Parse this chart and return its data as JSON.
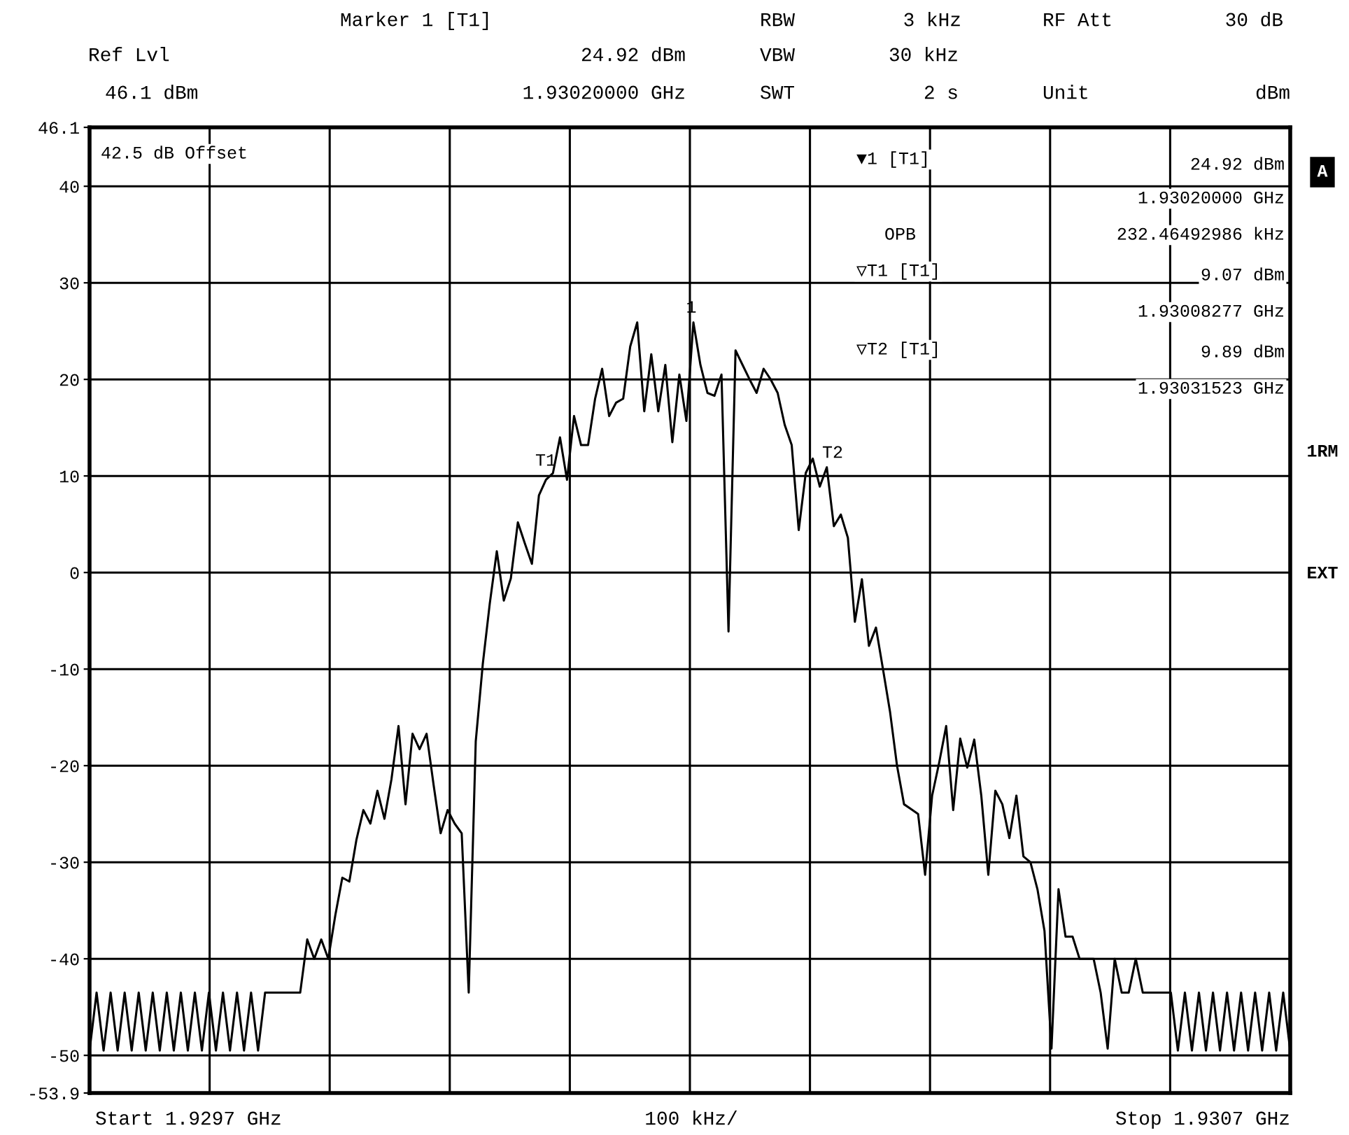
{
  "chart_data": {
    "type": "line",
    "categories": [
      null,
      null,
      null,
      null,
      null,
      null,
      null,
      null,
      null,
      null,
      null,
      null,
      null,
      null,
      null,
      null,
      null,
      null,
      null,
      null,
      null,
      null,
      null,
      null,
      null,
      null,
      null,
      null,
      null,
      null,
      null,
      null,
      null,
      null,
      null,
      null,
      null,
      null,
      null,
      null,
      null,
      null,
      null,
      null,
      null,
      null,
      null,
      null,
      null,
      null,
      null,
      null,
      null,
      null,
      null,
      null,
      null,
      null,
      null,
      null,
      null,
      null,
      null,
      null,
      null,
      null,
      null,
      null,
      null,
      null,
      null,
      null,
      null,
      null,
      null,
      null,
      null,
      null,
      null,
      null,
      null,
      null,
      null,
      null,
      null,
      null,
      null,
      null,
      null,
      null,
      null,
      null,
      null,
      null,
      null,
      null,
      null,
      null,
      null,
      null,
      null,
      null,
      null,
      null,
      null,
      null,
      null,
      null,
      null,
      null,
      null,
      null,
      null,
      null,
      null,
      null,
      null,
      null,
      null,
      null,
      null,
      null,
      null,
      null,
      null,
      null,
      null,
      null,
      null,
      null,
      null,
      null,
      null,
      null,
      null,
      null,
      null,
      null,
      null,
      null,
      null,
      null,
      null,
      null,
      null,
      null,
      null,
      null,
      null,
      null,
      null,
      null,
      null,
      null,
      null,
      null,
      null,
      null,
      null,
      null,
      null,
      null,
      null,
      null,
      null,
      null,
      null,
      null,
      null,
      null,
      null,
      null
    ],
    "ylim": [
      -53.9,
      46.1
    ],
    "yticks": [
      -53.9,
      -50,
      -40,
      -30,
      -20,
      -10,
      0,
      10,
      20,
      30,
      40,
      46.1
    ],
    "grid": true,
    "line_style": "solid",
    "marker": "none",
    "series": [
      {
        "color": "#000000",
        "values": [
          -49.5,
          -43.5,
          -49.5,
          -43.5,
          -49.5,
          -43.5,
          -49.5,
          -43.5,
          -49.5,
          -43.5,
          -49.5,
          -43.5,
          -49.5,
          -43.5,
          -49.5,
          -43.5,
          -49.5,
          -43.5,
          -49.5,
          -43.5,
          -49.5,
          -43.5,
          -49.5,
          -43.5,
          -49.5,
          -43.5,
          -43.5,
          -43.5,
          -43.5,
          -43.5,
          -43.5,
          -38,
          -40,
          -38,
          -40,
          -35.5,
          -31.6,
          -32,
          -27.7,
          -24.6,
          -26,
          -22.6,
          -25.5,
          -21.4,
          -15.9,
          -24,
          -16.7,
          -18.3,
          -16.7,
          -22,
          -27,
          -24.6,
          -26,
          -27,
          -43.5,
          -17.5,
          -9.5,
          -3.2,
          2.2,
          -2.9,
          -0.6,
          5.2,
          3,
          0.9,
          8,
          9.6,
          10.3,
          14,
          9.6,
          16.2,
          13.2,
          13.2,
          18,
          21.1,
          16.2,
          17.6,
          18,
          23.4,
          25.9,
          16.7,
          22.6,
          16.7,
          21.5,
          13.5,
          20.5,
          15.7,
          25.9,
          21.5,
          18.6,
          18.3,
          20.5,
          -6.1,
          23,
          21.5,
          20,
          18.6,
          21.1,
          20,
          18.6,
          15.3,
          13.2,
          4.4,
          10.3,
          11.8,
          8.9,
          10.9,
          4.8,
          6,
          3.6,
          -5.1,
          -0.7,
          -7.6,
          -5.7,
          -10,
          -14.4,
          -20,
          -24,
          -24.5,
          -25,
          -31.3,
          -23.1,
          -19.7,
          -15.9,
          -24.6,
          -17.2,
          -20.2,
          -17.3,
          -23.1,
          -31.3,
          -22.6,
          -24,
          -27.5,
          -23.1,
          -29.4,
          -30,
          -32.8,
          -37.1,
          -49.3,
          -32.8,
          -37.7,
          -37.7,
          -40,
          -40,
          -40,
          -43.5,
          -49.3,
          -40,
          -43.5,
          -43.5,
          -40,
          -43.5,
          -43.5,
          -43.5,
          -43.5,
          -43.5,
          -49.5,
          -43.5,
          -49.5,
          -43.5,
          -49.5,
          -43.5,
          -49.5,
          -43.5,
          -49.5,
          -43.5,
          -49.5,
          -43.5,
          -49.5,
          -43.5,
          -49.5,
          -43.5,
          -49.5
        ]
      }
    ],
    "annotations": [
      "Marker 1 [T1]",
      "RBW",
      "3 kHz",
      "RF Att",
      "30 dB",
      "Ref Lvl",
      "24.92 dBm",
      "VBW",
      "30 kHz",
      "46.1 dBm",
      "1.93020000 GHz",
      "SWT",
      "2 s",
      "Unit",
      "dBm",
      "42.5 dB Offset",
      "▼1 [T1]",
      "24.92 dBm",
      "1.93020000 GHz",
      "OPB",
      "232.46492986 kHz",
      "▽T1 [T1]",
      "9.07 dBm",
      "1.93008277 GHz",
      "▽T2 [T1]",
      "9.89 dBm",
      "1.93031523 GHz",
      "A",
      "1RM",
      "EXT",
      "Start 1.9297 GHz",
      "100 kHz/",
      "Stop 1.9307 GHz",
      {
        "text": "1",
        "y": 24.92
      },
      {
        "text": "T1",
        "y": 9.07
      },
      {
        "text": "T2",
        "y": 9.89
      }
    ]
  }
}
